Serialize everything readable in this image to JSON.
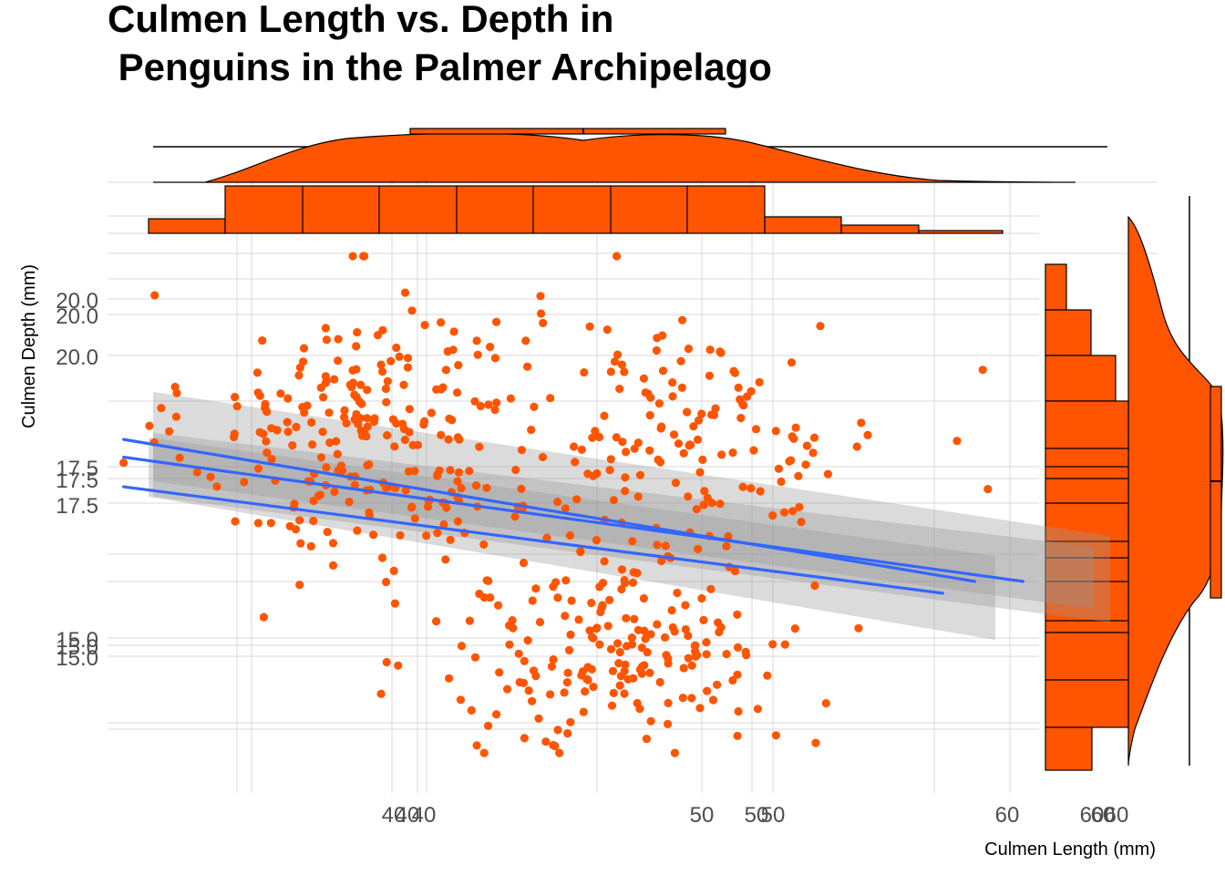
{
  "chart_data": {
    "type": "scatter",
    "title": [
      "Culmen Length vs. Depth in",
      " Penguins in the Palmer Archipelago"
    ],
    "xlabel": "Culmen Length (mm)",
    "ylabel": "Culmen Depth (mm)",
    "x_ticks": [
      "40",
      "50",
      "60"
    ],
    "y_ticks": [
      "15.0",
      "17.5",
      "20.0"
    ],
    "xlim": [
      31.5,
      60.5
    ],
    "ylim": [
      12.5,
      21.9
    ],
    "grid": true,
    "marginal": {
      "top": "histogram + density of Culmen Length",
      "right": "histogram + density of Culmen Depth"
    },
    "colors": {
      "points": "#FF5500",
      "fit_line": "#3366FF",
      "ribbon": "#999999",
      "grid": "#d9d9d9",
      "tick_text": "#4d4d4d"
    },
    "fit_lines": [
      {
        "x": [
          32,
          58.5
        ],
        "y": [
          18.4,
          16.0
        ]
      },
      {
        "x": [
          32,
          60
        ],
        "y": [
          18.1,
          16.0
        ]
      },
      {
        "x": [
          32,
          57.5
        ],
        "y": [
          17.6,
          15.8
        ]
      }
    ]
  }
}
